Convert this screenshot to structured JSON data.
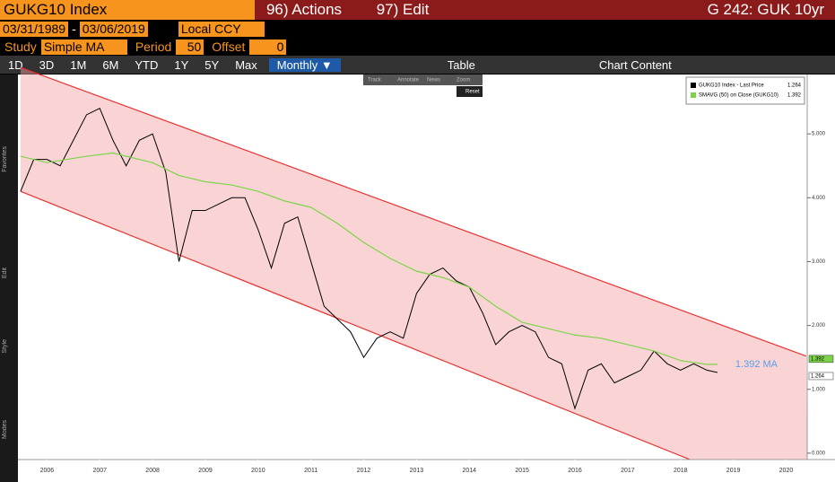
{
  "header": {
    "security": "GUKG10 Index",
    "actions": "96) Actions",
    "edit": "97) Edit",
    "page_title": "G 242: GUK 10yr"
  },
  "range": {
    "start": "03/31/1989",
    "separator": "-",
    "end": "03/06/2019",
    "currency": "Local CCY"
  },
  "study": {
    "label": "Study",
    "value": "Simple MA",
    "period_label": "Period",
    "period": "50",
    "offset_label": "Offset",
    "offset": "0"
  },
  "toolbar": {
    "periods": [
      "1D",
      "3D",
      "1M",
      "6M",
      "YTD",
      "1Y",
      "5Y",
      "Max"
    ],
    "frequency": "Monthly ▼",
    "table": "Table",
    "chart_content": "Chart Content"
  },
  "sidebar": [
    "Favorites",
    "Edit",
    "Style",
    "Modes"
  ],
  "popup": {
    "tools": [
      "Track",
      "Annotate",
      "News",
      "Zoom"
    ],
    "reset": "Reset"
  },
  "chart_data": {
    "type": "line",
    "xlim": [
      2005.95,
      2020.9
    ],
    "ylim": [
      -0.1,
      5.93
    ],
    "xticks": [
      {
        "value": 2006.5,
        "label": "2006"
      },
      {
        "value": 2007.5,
        "label": "2007"
      },
      {
        "value": 2008.5,
        "label": "2008"
      },
      {
        "value": 2009.5,
        "label": "2009"
      },
      {
        "value": 2010.5,
        "label": "2010"
      },
      {
        "value": 2011.5,
        "label": "2011"
      },
      {
        "value": 2012.5,
        "label": "2012"
      },
      {
        "value": 2013.5,
        "label": "2013"
      },
      {
        "value": 2014.5,
        "label": "2014"
      },
      {
        "value": 2015.5,
        "label": "2015"
      },
      {
        "value": 2016.5,
        "label": "2016"
      },
      {
        "value": 2017.5,
        "label": "2017"
      },
      {
        "value": 2018.5,
        "label": "2018"
      },
      {
        "value": 2019.5,
        "label": "2019"
      },
      {
        "value": 2020.5,
        "label": "2020"
      }
    ],
    "yticks": [
      {
        "value": 0,
        "label": "0.000"
      },
      {
        "value": 1,
        "label": "1.000"
      },
      {
        "value": 2,
        "label": "2.000"
      },
      {
        "value": 3,
        "label": "3.000"
      },
      {
        "value": 4,
        "label": "4.000"
      },
      {
        "value": 5,
        "label": "5.000"
      }
    ],
    "series": [
      {
        "name": "GUKG10 Index - Last Price",
        "last": "1.264",
        "color": "#000000",
        "x": [
          2006.0,
          2006.25,
          2006.5,
          2006.75,
          2007.0,
          2007.25,
          2007.5,
          2007.75,
          2008.0,
          2008.25,
          2008.5,
          2008.75,
          2009.0,
          2009.25,
          2009.5,
          2009.75,
          2010.0,
          2010.25,
          2010.5,
          2010.75,
          2011.0,
          2011.25,
          2011.5,
          2011.75,
          2012.0,
          2012.25,
          2012.5,
          2012.75,
          2013.0,
          2013.25,
          2013.5,
          2013.75,
          2014.0,
          2014.25,
          2014.5,
          2014.75,
          2015.0,
          2015.25,
          2015.5,
          2015.75,
          2016.0,
          2016.25,
          2016.5,
          2016.75,
          2017.0,
          2017.25,
          2017.5,
          2017.75,
          2018.0,
          2018.25,
          2018.5,
          2018.75,
          2019.0,
          2019.2
        ],
        "values": [
          4.1,
          4.6,
          4.6,
          4.5,
          4.9,
          5.3,
          5.4,
          4.9,
          4.5,
          4.9,
          5.0,
          4.4,
          3.0,
          3.8,
          3.8,
          3.9,
          4.0,
          4.0,
          3.5,
          2.9,
          3.6,
          3.7,
          3.0,
          2.3,
          2.1,
          1.9,
          1.5,
          1.8,
          1.9,
          1.8,
          2.5,
          2.8,
          2.9,
          2.7,
          2.6,
          2.2,
          1.7,
          1.9,
          2.0,
          1.9,
          1.5,
          1.4,
          0.7,
          1.3,
          1.4,
          1.1,
          1.2,
          1.3,
          1.6,
          1.4,
          1.3,
          1.4,
          1.3,
          1.264
        ]
      },
      {
        "name": "SMAVG (50)  on Close (GUKG10)",
        "last": "1.392",
        "color": "#7cd34a",
        "x": [
          2006.0,
          2006.5,
          2007.25,
          2007.75,
          2008.5,
          2009.0,
          2009.5,
          2010.0,
          2010.5,
          2011.0,
          2011.5,
          2012.0,
          2012.5,
          2013.0,
          2013.5,
          2014.0,
          2014.5,
          2015.0,
          2015.5,
          2016.0,
          2016.5,
          2017.0,
          2017.5,
          2018.0,
          2018.5,
          2019.0,
          2019.2
        ],
        "values": [
          4.65,
          4.55,
          4.65,
          4.7,
          4.55,
          4.35,
          4.25,
          4.2,
          4.1,
          3.95,
          3.85,
          3.6,
          3.3,
          3.05,
          2.85,
          2.75,
          2.6,
          2.3,
          2.05,
          1.95,
          1.85,
          1.8,
          1.7,
          1.6,
          1.45,
          1.39,
          1.392
        ]
      }
    ],
    "channel": {
      "color": "#f4a0a0",
      "upper_x": [
        2006.0,
        2020.88
      ],
      "upper": [
        6.04,
        1.52
      ],
      "lower_x": [
        2006.0,
        2018.68
      ],
      "lower": [
        4.1,
        -0.1
      ]
    },
    "annotation": "1.392 MA",
    "annotation_x": 2019.2
  }
}
